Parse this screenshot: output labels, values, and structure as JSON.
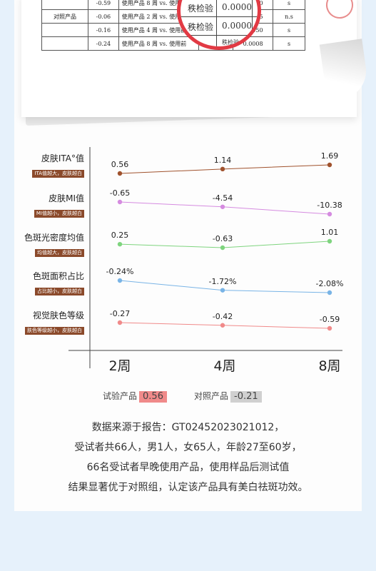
{
  "report_table": {
    "rows": [
      {
        "group": "",
        "value": "-0.59",
        "desc": "使用产品 8 周 vs. 使用前",
        "p": "0.0000",
        "sig": "s"
      },
      {
        "group": "对照产品",
        "value": "-0.06",
        "desc": "使用产品 2 周 vs. 使用前",
        "p": "0.2795",
        "sig": "n.s"
      },
      {
        "group": "",
        "value": "-0.16",
        "desc": "使用产品 4 周 vs. 使用前",
        "p": "0.0050",
        "sig": "s"
      },
      {
        "group": "",
        "value": "-0.24",
        "desc": "使用产品 8 周 vs. 使用前",
        "p": "0.0008",
        "sig": "s"
      }
    ],
    "loupe_rows": [
      {
        "method": "秩检验",
        "p": "0.0000"
      },
      {
        "method": "秩检验",
        "p": "0.0000"
      }
    ],
    "loupe_partial": "Wh",
    "loupe_partial_tail": "秩检验"
  },
  "chart_data": {
    "type": "line",
    "categories": [
      "2周",
      "4周",
      "8周"
    ],
    "series": [
      {
        "name": "皮肤ITA°值",
        "badge": "ITA值越大，皮肤越白",
        "labels": [
          "0.56",
          "1.14",
          "1.69"
        ],
        "values": [
          0.56,
          1.14,
          1.69
        ],
        "color": "#a0522d"
      },
      {
        "name": "皮肤MI值",
        "badge": "MI值越小，皮肤越白",
        "labels": [
          "-0.65",
          "-4.54",
          "-10.38"
        ],
        "values": [
          -0.65,
          -4.54,
          -10.38
        ],
        "color": "#d58be0"
      },
      {
        "name": "色斑光密度均值",
        "badge": "均值越大，皮肤越白",
        "labels": [
          "0.25",
          "-0.63",
          "1.01"
        ],
        "values": [
          0.25,
          -0.63,
          1.01
        ],
        "color": "#7ed47e"
      },
      {
        "name": "色斑面积占比",
        "badge": "占比越小，皮肤越白",
        "labels": [
          "-0.24%",
          "-1.72%",
          "-2.08%"
        ],
        "values": [
          -0.24,
          -1.72,
          -2.08
        ],
        "color": "#79b4e6"
      },
      {
        "name": "视觉肤色等级",
        "badge": "肤色等级越小，皮肤越白",
        "labels": [
          "-0.27",
          "-0.42",
          "-0.59"
        ],
        "values": [
          -0.27,
          -0.42,
          -0.59
        ],
        "color": "#f08a8a"
      }
    ]
  },
  "legend": {
    "test_label": "试验产品",
    "test_value": "0.56",
    "test_color": "#f08a8a",
    "control_label": "对照产品",
    "control_value": "-0.21",
    "control_color": "#d0d0d0"
  },
  "source_note": {
    "line1": "数据来源于报告：GT02452023021012，",
    "line2": "受试者共66人，男1人，女65人，年龄27至60岁，",
    "line3": "66名受试者早晚使用产品，使用样品后测试值",
    "line4": "结果显著优于对照组，认定该产品具有美白祛斑功效。"
  }
}
